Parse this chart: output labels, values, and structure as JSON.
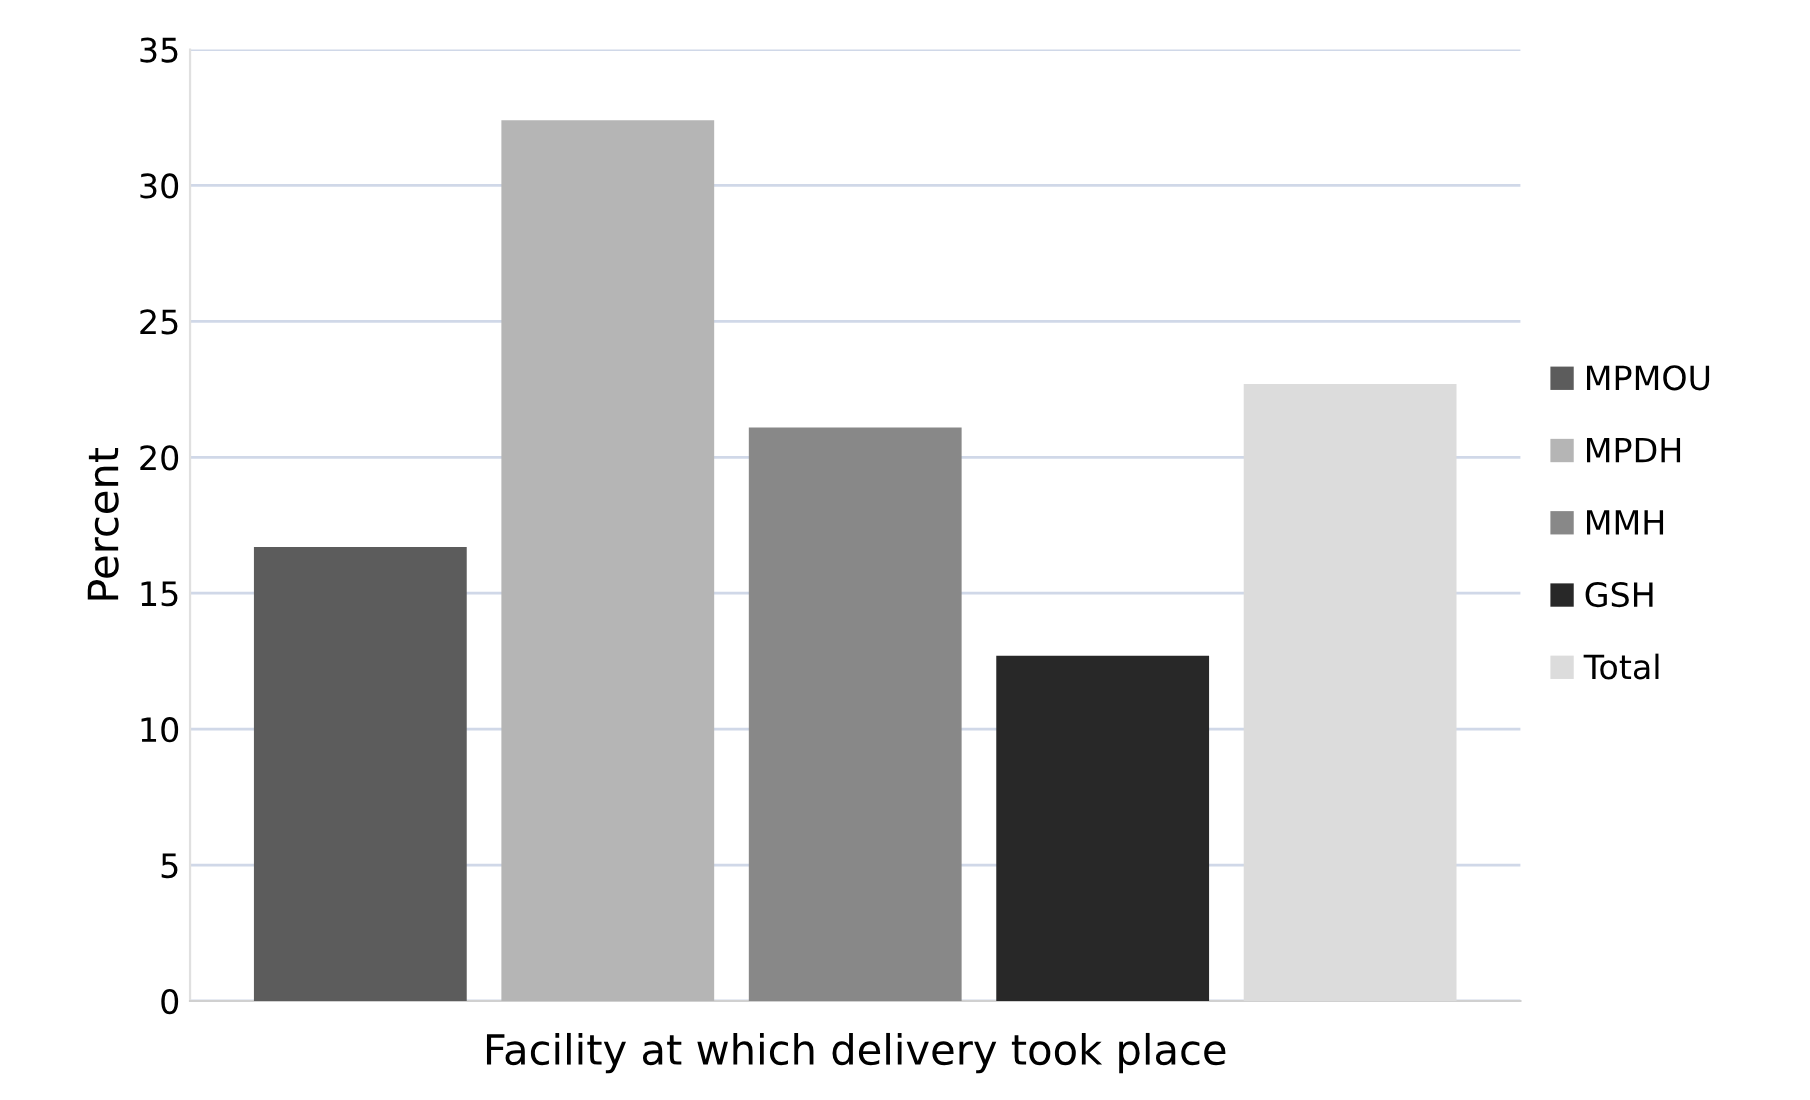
{
  "chart_data": {
    "type": "bar",
    "xlabel": "Facility at which delivery took place",
    "ylabel": "Percent",
    "categories": [
      null
    ],
    "series": [
      {
        "name": "MPMOU",
        "color": "#5c5c5c",
        "values": [
          16.7
        ]
      },
      {
        "name": "MPDH",
        "color": "#b5b5b5",
        "values": [
          32.4
        ]
      },
      {
        "name": "MMH",
        "color": "#888888",
        "values": [
          21.1
        ]
      },
      {
        "name": "GSH",
        "color": "#282828",
        "values": [
          12.7
        ]
      },
      {
        "name": "Total",
        "color": "#dcdcdc",
        "values": [
          22.7
        ]
      }
    ],
    "ylim": [
      0,
      35
    ],
    "yticks": [
      0,
      5,
      10,
      15,
      20,
      25,
      30,
      35
    ],
    "grid": "y",
    "legend": "right"
  }
}
